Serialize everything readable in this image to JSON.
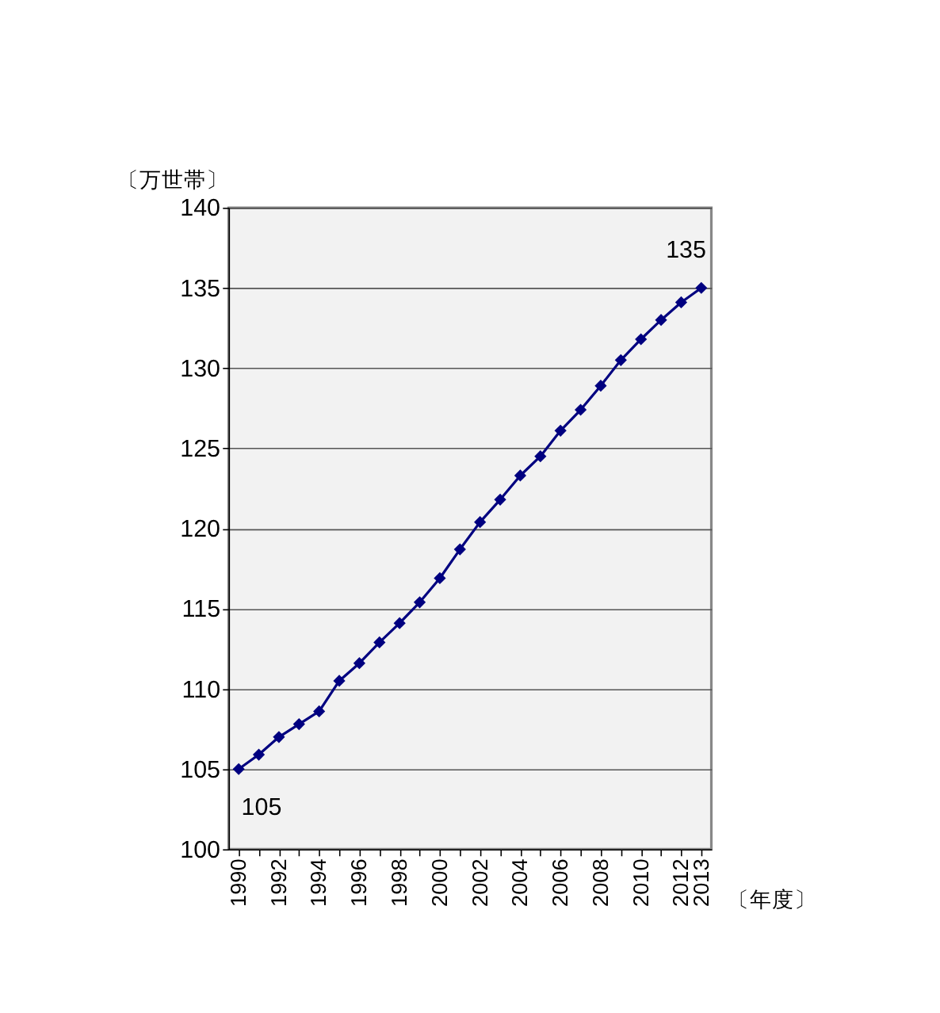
{
  "chart_data": {
    "type": "line",
    "ylabel": "〔万世帯〕",
    "xlabel": "〔年度〕",
    "categories": [
      "1990",
      null,
      "1992",
      null,
      "1994",
      null,
      "1996",
      null,
      "1998",
      null,
      "2000",
      null,
      "2002",
      null,
      "2004",
      null,
      "2006",
      null,
      "2008",
      null,
      "2010",
      null,
      "2012",
      "2013"
    ],
    "series": [
      {
        "color": "#000080",
        "values": [
          105.0,
          105.9,
          107.0,
          107.8,
          108.6,
          110.5,
          111.6,
          112.9,
          114.1,
          115.4,
          116.9,
          118.7,
          120.4,
          121.8,
          123.3,
          124.5,
          126.1,
          127.4,
          128.9,
          130.5,
          131.8,
          133.0,
          134.1,
          135
        ],
        "value_labels": [
          "105",
          null,
          null,
          null,
          null,
          null,
          null,
          null,
          null,
          null,
          null,
          null,
          null,
          null,
          null,
          null,
          null,
          null,
          null,
          null,
          null,
          null,
          null,
          "135"
        ]
      }
    ],
    "ylim": [
      100,
      140
    ],
    "yticks": [
      100,
      105,
      110,
      115,
      120,
      125,
      130,
      135,
      140
    ],
    "grid": "y",
    "marker": "diamond",
    "line_style": "solid"
  }
}
